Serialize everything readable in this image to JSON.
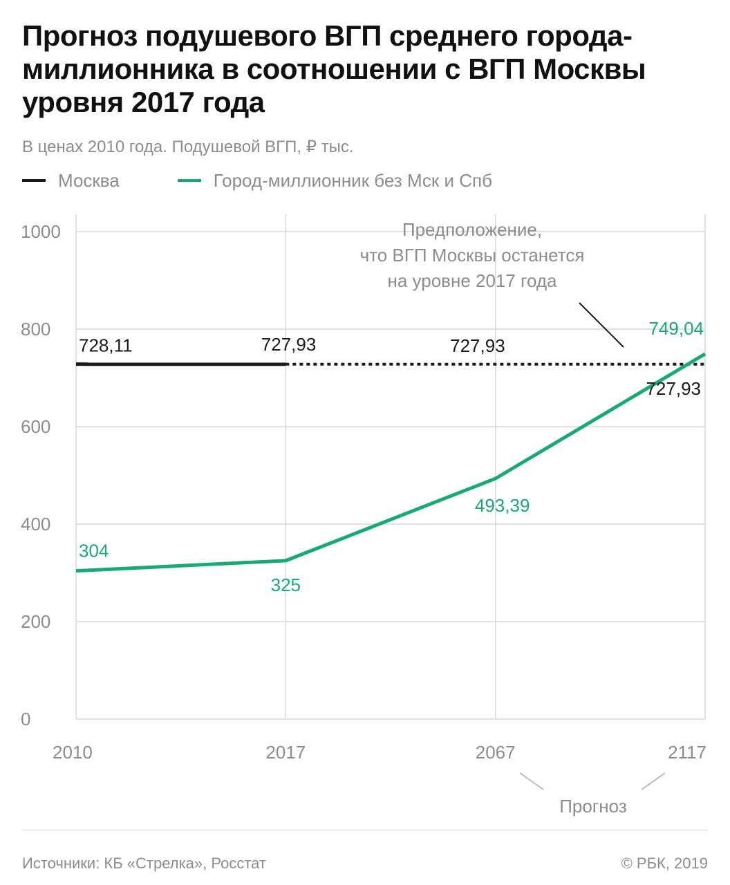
{
  "header": {
    "title": "Прогноз подушевого ВГП среднего города-миллионника в соотношении с ВГП Москвы уровня 2017 года",
    "subtitle": "В ценах 2010 года. Подушевой ВГП, ₽ тыс."
  },
  "colors": {
    "moscow": "#1a1a1a",
    "city": "#1aa874",
    "grid": "#d9d9d9",
    "muted": "#8c8c8c"
  },
  "chart_data": {
    "type": "line",
    "categories": [
      "2010",
      "2017",
      "2067",
      "2117"
    ],
    "ylim": [
      0,
      1000
    ],
    "yticks": [
      0,
      200,
      400,
      600,
      800,
      1000
    ],
    "xlabel": "",
    "ylabel": "",
    "grid": true,
    "legend_position": "top",
    "series": [
      {
        "key": "moscow",
        "name": "Москва",
        "values": [
          728.11,
          727.93,
          727.93,
          727.93
        ],
        "labels": [
          "728,11",
          "727,93",
          "727,93",
          "727,93"
        ],
        "style": "solid through 2017, dotted after"
      },
      {
        "key": "city",
        "name": "Город-миллионник без Мск и Спб",
        "values": [
          304,
          325,
          493.39,
          749.04
        ],
        "labels": [
          "304",
          "325",
          "493,39",
          "749,04"
        ],
        "style": "solid"
      }
    ],
    "annotations": {
      "assumption": [
        "Предположение,",
        "что ВГП Москвы останется",
        "на уровне 2017 года"
      ],
      "forecast": "Прогноз"
    }
  },
  "footer": {
    "source": "Источники: КБ «Стрелка», Росстат",
    "copyright": "© РБК, 2019"
  }
}
